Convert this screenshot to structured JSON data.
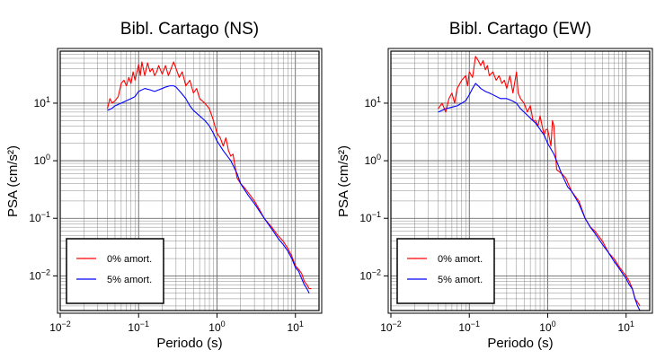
{
  "chart_data": [
    {
      "type": "line",
      "title": "Bibl. Cartago (NS)",
      "xlabel": "Periodo (s)",
      "ylabel": "PSA (cm/s²)",
      "xscale": "log",
      "yscale": "log",
      "xlim": [
        0.01,
        20
      ],
      "ylim": [
        0.0025,
        80
      ],
      "x_ticks": [
        {
          "value": 0.01,
          "base": "10",
          "exp": "−2"
        },
        {
          "value": 0.1,
          "base": "10",
          "exp": "−1"
        },
        {
          "value": 1,
          "base": "10",
          "exp": "0"
        },
        {
          "value": 10,
          "base": "10",
          "exp": "1"
        }
      ],
      "y_ticks": [
        {
          "value": 0.01,
          "base": "10",
          "exp": "−2"
        },
        {
          "value": 0.1,
          "base": "10",
          "exp": "−1"
        },
        {
          "value": 1,
          "base": "10",
          "exp": "0"
        },
        {
          "value": 10,
          "base": "10",
          "exp": "1"
        }
      ],
      "grid": true,
      "legend_position": "bottom-left",
      "series": [
        {
          "name": "0% amort.",
          "color": "#ff0000",
          "points": [
            [
              0.04,
              8
            ],
            [
              0.043,
              12
            ],
            [
              0.046,
              10
            ],
            [
              0.05,
              11
            ],
            [
              0.055,
              13
            ],
            [
              0.06,
              22
            ],
            [
              0.065,
              25
            ],
            [
              0.07,
              20
            ],
            [
              0.075,
              28
            ],
            [
              0.08,
              22
            ],
            [
              0.085,
              35
            ],
            [
              0.09,
              25
            ],
            [
              0.1,
              47
            ],
            [
              0.105,
              30
            ],
            [
              0.11,
              52
            ],
            [
              0.12,
              30
            ],
            [
              0.13,
              50
            ],
            [
              0.14,
              35
            ],
            [
              0.15,
              40
            ],
            [
              0.16,
              30
            ],
            [
              0.17,
              35
            ],
            [
              0.18,
              45
            ],
            [
              0.2,
              32
            ],
            [
              0.22,
              45
            ],
            [
              0.24,
              30
            ],
            [
              0.26,
              40
            ],
            [
              0.28,
              52
            ],
            [
              0.3,
              40
            ],
            [
              0.33,
              28
            ],
            [
              0.36,
              35
            ],
            [
              0.4,
              20
            ],
            [
              0.45,
              25
            ],
            [
              0.5,
              15
            ],
            [
              0.55,
              18
            ],
            [
              0.6,
              12
            ],
            [
              0.7,
              10
            ],
            [
              0.8,
              8
            ],
            [
              0.9,
              5
            ],
            [
              1.0,
              3
            ],
            [
              1.1,
              2.5
            ],
            [
              1.2,
              1.8
            ],
            [
              1.3,
              2.5
            ],
            [
              1.4,
              1.5
            ],
            [
              1.5,
              1.2
            ],
            [
              1.6,
              1.3
            ],
            [
              1.8,
              0.5
            ],
            [
              2.0,
              0.4
            ],
            [
              2.2,
              0.35
            ],
            [
              2.5,
              0.28
            ],
            [
              3,
              0.2
            ],
            [
              3.5,
              0.14
            ],
            [
              4,
              0.1
            ],
            [
              5,
              0.07
            ],
            [
              6,
              0.05
            ],
            [
              7,
              0.04
            ],
            [
              8,
              0.03
            ],
            [
              9,
              0.022
            ],
            [
              10,
              0.015
            ],
            [
              11,
              0.013
            ],
            [
              12,
              0.011
            ],
            [
              13,
              0.008
            ],
            [
              14,
              0.007
            ],
            [
              15,
              0.006
            ],
            [
              16,
              0.006
            ]
          ]
        },
        {
          "name": "5% amort.",
          "color": "#0000ff",
          "points": [
            [
              0.04,
              7.5
            ],
            [
              0.045,
              8
            ],
            [
              0.05,
              9
            ],
            [
              0.06,
              10
            ],
            [
              0.07,
              11
            ],
            [
              0.08,
              12
            ],
            [
              0.09,
              13
            ],
            [
              0.1,
              16
            ],
            [
              0.12,
              18
            ],
            [
              0.14,
              17
            ],
            [
              0.16,
              16
            ],
            [
              0.18,
              17
            ],
            [
              0.2,
              18
            ],
            [
              0.22,
              19
            ],
            [
              0.25,
              20
            ],
            [
              0.28,
              20
            ],
            [
              0.3,
              19
            ],
            [
              0.35,
              15
            ],
            [
              0.4,
              12
            ],
            [
              0.45,
              9
            ],
            [
              0.5,
              7.5
            ],
            [
              0.6,
              6
            ],
            [
              0.7,
              5
            ],
            [
              0.8,
              4
            ],
            [
              0.9,
              3
            ],
            [
              1.0,
              2.2
            ],
            [
              1.2,
              1.5
            ],
            [
              1.5,
              1.0
            ],
            [
              1.8,
              0.6
            ],
            [
              2.0,
              0.4
            ],
            [
              2.5,
              0.25
            ],
            [
              3,
              0.18
            ],
            [
              4,
              0.1
            ],
            [
              5,
              0.065
            ],
            [
              6,
              0.045
            ],
            [
              7,
              0.035
            ],
            [
              8,
              0.027
            ],
            [
              9,
              0.02
            ],
            [
              10,
              0.014
            ],
            [
              11,
              0.012
            ],
            [
              12,
              0.009
            ],
            [
              13,
              0.007
            ],
            [
              14,
              0.006
            ],
            [
              15,
              0.005
            ]
          ]
        }
      ]
    },
    {
      "type": "line",
      "title": "Bibl. Cartago (EW)",
      "xlabel": "Periodo (s)",
      "ylabel": "PSA (cm/s²)",
      "xscale": "log",
      "yscale": "log",
      "xlim": [
        0.01,
        20
      ],
      "ylim": [
        0.0025,
        80
      ],
      "x_ticks": [
        {
          "value": 0.01,
          "base": "10",
          "exp": "−2"
        },
        {
          "value": 0.1,
          "base": "10",
          "exp": "−1"
        },
        {
          "value": 1,
          "base": "10",
          "exp": "0"
        },
        {
          "value": 10,
          "base": "10",
          "exp": "1"
        }
      ],
      "y_ticks": [
        {
          "value": 0.01,
          "base": "10",
          "exp": "−2"
        },
        {
          "value": 0.1,
          "base": "10",
          "exp": "−1"
        },
        {
          "value": 1,
          "base": "10",
          "exp": "0"
        },
        {
          "value": 10,
          "base": "10",
          "exp": "1"
        }
      ],
      "grid": true,
      "legend_position": "bottom-left",
      "series": [
        {
          "name": "0% amort.",
          "color": "#ff0000",
          "points": [
            [
              0.04,
              8
            ],
            [
              0.045,
              10
            ],
            [
              0.05,
              7
            ],
            [
              0.055,
              12
            ],
            [
              0.06,
              15
            ],
            [
              0.065,
              10
            ],
            [
              0.07,
              18
            ],
            [
              0.08,
              25
            ],
            [
              0.09,
              30
            ],
            [
              0.095,
              20
            ],
            [
              0.1,
              35
            ],
            [
              0.11,
              28
            ],
            [
              0.12,
              65
            ],
            [
              0.13,
              55
            ],
            [
              0.14,
              45
            ],
            [
              0.15,
              55
            ],
            [
              0.16,
              38
            ],
            [
              0.17,
              45
            ],
            [
              0.18,
              30
            ],
            [
              0.2,
              35
            ],
            [
              0.22,
              25
            ],
            [
              0.24,
              30
            ],
            [
              0.26,
              22
            ],
            [
              0.28,
              25
            ],
            [
              0.3,
              18
            ],
            [
              0.33,
              30
            ],
            [
              0.36,
              15
            ],
            [
              0.4,
              35
            ],
            [
              0.42,
              15
            ],
            [
              0.45,
              12
            ],
            [
              0.5,
              10
            ],
            [
              0.55,
              7
            ],
            [
              0.6,
              9
            ],
            [
              0.65,
              5
            ],
            [
              0.7,
              5
            ],
            [
              0.75,
              4
            ],
            [
              0.8,
              6
            ],
            [
              0.85,
              4
            ],
            [
              0.9,
              2.8
            ],
            [
              0.95,
              3.5
            ],
            [
              1.0,
              3.5
            ],
            [
              1.05,
              2.5
            ],
            [
              1.1,
              1.8
            ],
            [
              1.15,
              5
            ],
            [
              1.2,
              4
            ],
            [
              1.25,
              1.5
            ],
            [
              1.3,
              0.7
            ],
            [
              1.5,
              0.6
            ],
            [
              1.7,
              0.5
            ],
            [
              2.0,
              0.3
            ],
            [
              2.2,
              0.25
            ],
            [
              2.5,
              0.2
            ],
            [
              3,
              0.1
            ],
            [
              3.5,
              0.07
            ],
            [
              4,
              0.06
            ],
            [
              5,
              0.04
            ],
            [
              6,
              0.025
            ],
            [
              7,
              0.02
            ],
            [
              8,
              0.015
            ],
            [
              9,
              0.012
            ],
            [
              10,
              0.01
            ],
            [
              11,
              0.008
            ],
            [
              12,
              0.006
            ],
            [
              13,
              0.004
            ],
            [
              14,
              0.0035
            ],
            [
              15,
              0.003
            ]
          ]
        },
        {
          "name": "5% amort.",
          "color": "#0000ff",
          "points": [
            [
              0.04,
              7
            ],
            [
              0.045,
              7.5
            ],
            [
              0.05,
              8
            ],
            [
              0.06,
              8.5
            ],
            [
              0.07,
              9
            ],
            [
              0.08,
              10
            ],
            [
              0.09,
              11
            ],
            [
              0.1,
              14
            ],
            [
              0.11,
              18
            ],
            [
              0.12,
              22
            ],
            [
              0.13,
              20
            ],
            [
              0.14,
              18
            ],
            [
              0.16,
              16
            ],
            [
              0.18,
              15
            ],
            [
              0.2,
              14
            ],
            [
              0.25,
              12
            ],
            [
              0.3,
              12
            ],
            [
              0.35,
              11
            ],
            [
              0.4,
              10
            ],
            [
              0.45,
              8
            ],
            [
              0.5,
              7
            ],
            [
              0.6,
              5.5
            ],
            [
              0.7,
              4.5
            ],
            [
              0.8,
              3.5
            ],
            [
              0.9,
              2.8
            ],
            [
              1.0,
              2
            ],
            [
              1.2,
              1.3
            ],
            [
              1.5,
              0.6
            ],
            [
              1.8,
              0.35
            ],
            [
              2.0,
              0.3
            ],
            [
              2.5,
              0.18
            ],
            [
              3,
              0.1
            ],
            [
              3.5,
              0.07
            ],
            [
              4,
              0.055
            ],
            [
              5,
              0.035
            ],
            [
              6,
              0.025
            ],
            [
              7,
              0.018
            ],
            [
              8,
              0.014
            ],
            [
              9,
              0.011
            ],
            [
              10,
              0.009
            ],
            [
              11,
              0.007
            ],
            [
              12,
              0.006
            ],
            [
              13,
              0.004
            ],
            [
              14,
              0.003
            ],
            [
              15,
              0.0025
            ]
          ]
        }
      ]
    }
  ]
}
